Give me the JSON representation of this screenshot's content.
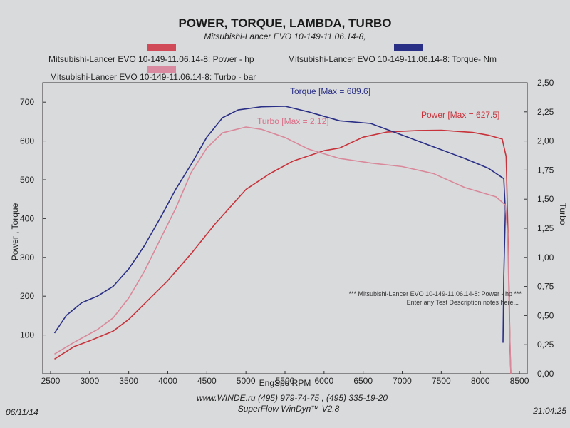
{
  "chart_data": {
    "type": "line",
    "title": "POWER, TORQUE, LAMBDA, TURBO",
    "subtitle": "Mitsubishi-Lancer EVO 10-149-11.06.14-8,",
    "xlabel": "EngSpd  RPM",
    "ylabel_left": "Power , Torque",
    "ylabel_right": "Turbo",
    "xlim": [
      2400,
      8600
    ],
    "ylim_left": [
      0,
      750
    ],
    "ylim_right": [
      0,
      2.5
    ],
    "x_ticks": [
      2500,
      3000,
      3500,
      4000,
      4500,
      5000,
      5500,
      6000,
      6500,
      7000,
      7500,
      8000,
      8500
    ],
    "y_left_ticks": [
      100,
      200,
      300,
      400,
      500,
      600,
      700
    ],
    "y_right_ticks": [
      "0,00",
      "0,25",
      "0,50",
      "0,75",
      "1,00",
      "1,25",
      "1,50",
      "1,75",
      "2,00",
      "2,25",
      "2,50"
    ],
    "grid": false,
    "legend_placement": "top",
    "series": [
      {
        "name": "Mitsubishi-Lancer EVO 10-149-11.06.14-8: Power -  hp",
        "axis": "left",
        "color": "#c8323a",
        "annotation": "Power  [Max = 627.5]",
        "points": [
          [
            2550,
            38
          ],
          [
            2800,
            70
          ],
          [
            3000,
            85
          ],
          [
            3300,
            110
          ],
          [
            3500,
            140
          ],
          [
            3700,
            180
          ],
          [
            4000,
            240
          ],
          [
            4300,
            310
          ],
          [
            4600,
            385
          ],
          [
            4800,
            430
          ],
          [
            5000,
            475
          ],
          [
            5300,
            515
          ],
          [
            5600,
            548
          ],
          [
            6000,
            575
          ],
          [
            6200,
            582
          ],
          [
            6500,
            610
          ],
          [
            6800,
            623
          ],
          [
            7200,
            627
          ],
          [
            7500,
            627.5
          ],
          [
            7900,
            622
          ],
          [
            8100,
            615
          ],
          [
            8280,
            605
          ],
          [
            8330,
            560
          ],
          [
            8360,
            300
          ],
          [
            8380,
            60
          ],
          [
            8390,
            0
          ]
        ]
      },
      {
        "name": "Mitsubishi-Lancer EVO 10-149-11.06.14-8: Torque-  Nm",
        "axis": "left",
        "color": "#2a2f86",
        "annotation": "Torque [Max = 689.6]",
        "points": [
          [
            2550,
            105
          ],
          [
            2700,
            150
          ],
          [
            2900,
            183
          ],
          [
            3100,
            200
          ],
          [
            3300,
            225
          ],
          [
            3500,
            270
          ],
          [
            3700,
            330
          ],
          [
            3900,
            400
          ],
          [
            4100,
            475
          ],
          [
            4300,
            540
          ],
          [
            4500,
            610
          ],
          [
            4700,
            660
          ],
          [
            4900,
            680
          ],
          [
            5200,
            688
          ],
          [
            5500,
            689.6
          ],
          [
            5800,
            675
          ],
          [
            6200,
            652
          ],
          [
            6600,
            645
          ],
          [
            7000,
            615
          ],
          [
            7400,
            585
          ],
          [
            7800,
            555
          ],
          [
            8100,
            530
          ],
          [
            8300,
            503
          ],
          [
            8320,
            420
          ],
          [
            8300,
            250
          ],
          [
            8290,
            80
          ]
        ]
      },
      {
        "name": "Mitsubishi-Lancer EVO 10-149-11.06.14-8: Turbo - bar",
        "axis": "right",
        "color": "#d9889a",
        "annotation": "Turbo  [Max = 2.12]",
        "points": [
          [
            2550,
            0.17
          ],
          [
            2800,
            0.27
          ],
          [
            3100,
            0.38
          ],
          [
            3300,
            0.48
          ],
          [
            3500,
            0.65
          ],
          [
            3700,
            0.88
          ],
          [
            3900,
            1.15
          ],
          [
            4100,
            1.42
          ],
          [
            4300,
            1.73
          ],
          [
            4500,
            1.94
          ],
          [
            4700,
            2.07
          ],
          [
            5000,
            2.12
          ],
          [
            5200,
            2.1
          ],
          [
            5500,
            2.03
          ],
          [
            5800,
            1.93
          ],
          [
            6200,
            1.85
          ],
          [
            6600,
            1.81
          ],
          [
            7000,
            1.78
          ],
          [
            7400,
            1.72
          ],
          [
            7800,
            1.6
          ],
          [
            8200,
            1.52
          ],
          [
            8320,
            1.45
          ],
          [
            8350,
            1.2
          ],
          [
            8370,
            0.5
          ],
          [
            8390,
            0.0
          ]
        ]
      }
    ],
    "description_line1": "*** Mitsubishi-Lancer EVO 10-149-11.06.14-8: Power -  hp      ***",
    "description_line2": "Enter any Test Description notes here..."
  },
  "footer": {
    "website": "www.WINDE.ru   (495) 979-74-75 , (495) 335-19-20",
    "software": "SuperFlow WinDyn™ V2.8",
    "date": "06/11/14",
    "time": "21:04:25"
  }
}
